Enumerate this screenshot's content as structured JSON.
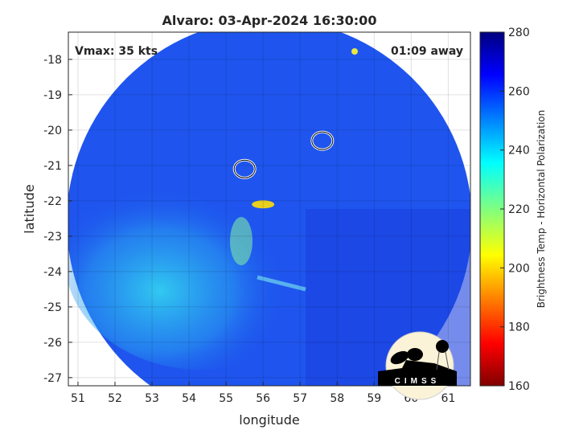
{
  "chart_data": {
    "type": "heatmap",
    "title": "Alvaro: 03-Apr-2024 16:30:00",
    "xlabel": "longitude",
    "ylabel": "latitude",
    "xlim": [
      50.74,
      61.6
    ],
    "ylim": [
      -27.23,
      -17.23
    ],
    "xticks": [
      51,
      52,
      53,
      54,
      55,
      56,
      57,
      58,
      59,
      60,
      61
    ],
    "yticks": [
      -18,
      -19,
      -20,
      -21,
      -22,
      -23,
      -24,
      -25,
      -26,
      -27
    ],
    "grid": true,
    "annotations": {
      "left": "Vmax: 35 kts",
      "right": "01:09 away"
    },
    "colorbar": {
      "label": "Brightness Temp - Horizontal Polarization",
      "range": [
        160,
        280
      ],
      "ticks": [
        160,
        180,
        200,
        220,
        240,
        260,
        280
      ],
      "colormap": "jet"
    },
    "contours": [
      {
        "lon": 57.6,
        "lat": -20.3
      },
      {
        "lon": 55.5,
        "lat": -21.1
      }
    ],
    "warm_spot": {
      "lon": 56.0,
      "lat": -22.1
    }
  },
  "logo": "CIMSS"
}
